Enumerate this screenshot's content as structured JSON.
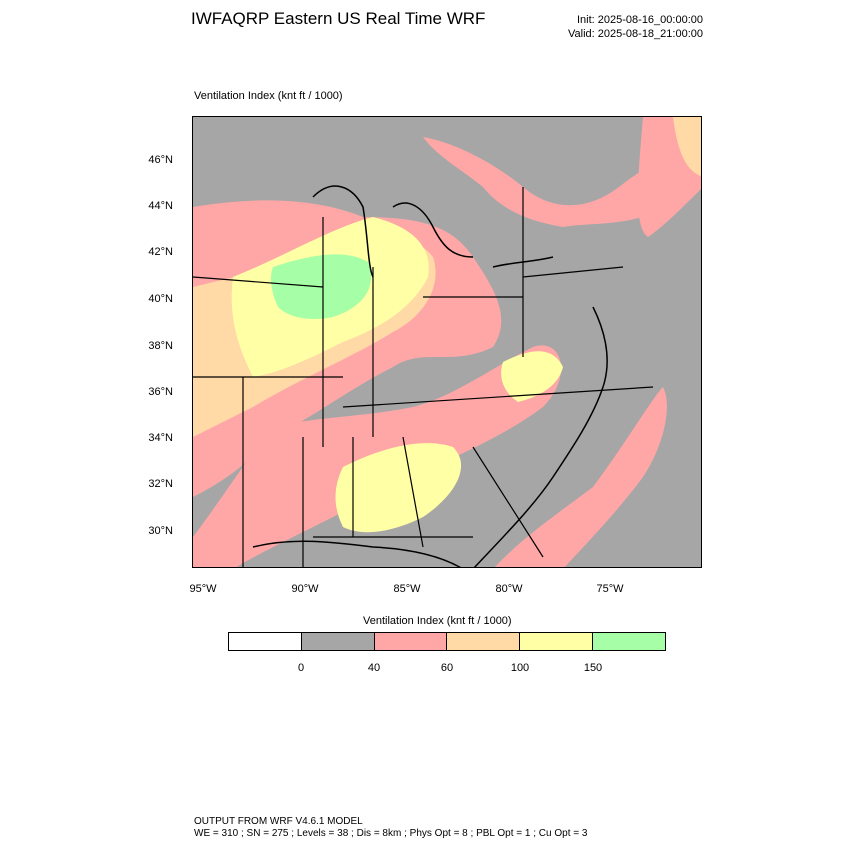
{
  "header": {
    "title": "IWFAQRP Eastern US Real Time WRF",
    "init": "Init: 2025-08-16_00:00:00",
    "valid": "Valid: 2025-08-18_21:00:00"
  },
  "map": {
    "subtitle": "Ventilation Index   (knt ft / 1000)",
    "lat_labels": [
      "46°N",
      "44°N",
      "42°N",
      "40°N",
      "38°N",
      "36°N",
      "34°N",
      "32°N",
      "30°N"
    ],
    "lon_labels": [
      "95°W",
      "90°W",
      "85°W",
      "80°W",
      "75°W"
    ],
    "background_color": "#a6a6a6"
  },
  "colorbar": {
    "title": "Ventilation Index  (knt ft / 1000)",
    "colors": [
      "#ffffff",
      "#a6a6a6",
      "#ffa6a6",
      "#ffd9a6",
      "#ffffa6",
      "#a6ffa6"
    ],
    "labels": [
      "0",
      "40",
      "60",
      "100",
      "150"
    ]
  },
  "footer": {
    "line1": "OUTPUT FROM WRF V4.6.1 MODEL",
    "line2": "WE = 310 ; SN = 275 ; Levels = 38 ; Dis = 8km ; Phys Opt = 8 ; PBL Opt = 1 ; Cu Opt = 3"
  }
}
